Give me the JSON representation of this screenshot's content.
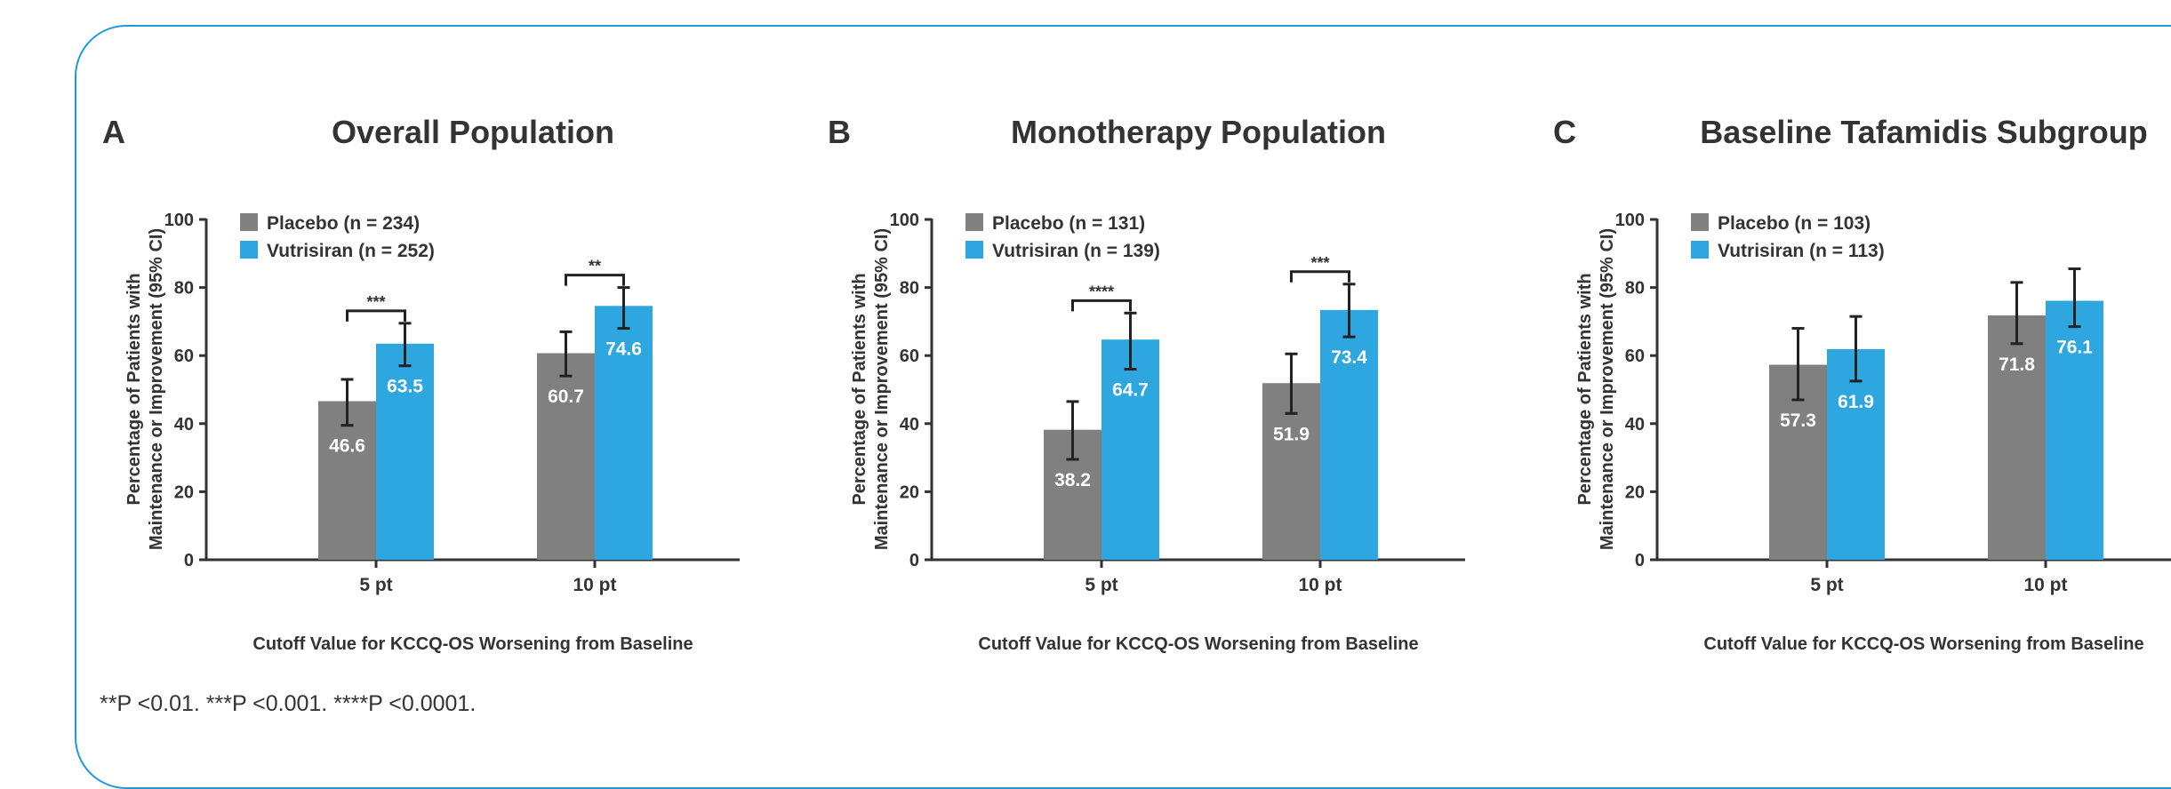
{
  "footnote": "**P <0.01. ***P <0.001. ****P <0.0001.",
  "colors": {
    "placebo": "#808080",
    "vutrisiran": "#2ea6df",
    "frame": "#1e9ad6"
  },
  "chart_data": [
    {
      "type": "bar",
      "panel_letter": "A",
      "title": "Overall Population",
      "xlabel": "Cutoff Value for KCCQ-OS Worsening from Baseline",
      "ylabel": [
        "Percentage of Patients with",
        "Maintenance or Improvement (95% CI)"
      ],
      "ylim": [
        0,
        100
      ],
      "yticks": [
        0,
        20,
        40,
        60,
        80,
        100
      ],
      "categories": [
        "5 pt",
        "10 pt"
      ],
      "legend_position": "top-left",
      "series": [
        {
          "name": "Placebo (n = 234)",
          "color": "#808080",
          "values": [
            46.6,
            60.7
          ],
          "ci_low": [
            39.5,
            54.0
          ],
          "ci_high": [
            53.0,
            67.0
          ]
        },
        {
          "name": "Vutrisiran (n = 252)",
          "color": "#2ea6df",
          "values": [
            63.5,
            74.6
          ],
          "ci_low": [
            57.0,
            68.0
          ],
          "ci_high": [
            69.5,
            80.0
          ]
        }
      ],
      "significance": [
        "***",
        "**"
      ]
    },
    {
      "type": "bar",
      "panel_letter": "B",
      "title": "Monotherapy Population",
      "xlabel": "Cutoff Value for KCCQ-OS Worsening from Baseline",
      "ylabel": [
        "Percentage of Patients with",
        "Maintenance or Improvement (95% CI)"
      ],
      "ylim": [
        0,
        100
      ],
      "yticks": [
        0,
        20,
        40,
        60,
        80,
        100
      ],
      "categories": [
        "5 pt",
        "10 pt"
      ],
      "legend_position": "top-left",
      "series": [
        {
          "name": "Placebo (n = 131)",
          "color": "#808080",
          "values": [
            38.2,
            51.9
          ],
          "ci_low": [
            29.5,
            43.0
          ],
          "ci_high": [
            46.5,
            60.5
          ]
        },
        {
          "name": "Vutrisiran (n = 139)",
          "color": "#2ea6df",
          "values": [
            64.7,
            73.4
          ],
          "ci_low": [
            56.0,
            65.5
          ],
          "ci_high": [
            72.5,
            81.0
          ]
        }
      ],
      "significance": [
        "****",
        "***"
      ]
    },
    {
      "type": "bar",
      "panel_letter": "C",
      "title": "Baseline Tafamidis Subgroup",
      "xlabel": "Cutoff Value for KCCQ-OS Worsening from Baseline",
      "ylabel": [
        "Percentage of Patients with",
        "Maintenance or Improvement (95% CI)"
      ],
      "ylim": [
        0,
        100
      ],
      "yticks": [
        0,
        20,
        40,
        60,
        80,
        100
      ],
      "categories": [
        "5 pt",
        "10 pt"
      ],
      "legend_position": "top-left",
      "series": [
        {
          "name": "Placebo (n = 103)",
          "color": "#808080",
          "values": [
            57.3,
            71.8
          ],
          "ci_low": [
            47.0,
            63.5
          ],
          "ci_high": [
            68.0,
            81.5
          ]
        },
        {
          "name": "Vutrisiran (n = 113)",
          "color": "#2ea6df",
          "values": [
            61.9,
            76.1
          ],
          "ci_low": [
            52.5,
            68.5
          ],
          "ci_high": [
            71.5,
            85.5
          ]
        }
      ],
      "significance": [
        "",
        ""
      ]
    }
  ]
}
